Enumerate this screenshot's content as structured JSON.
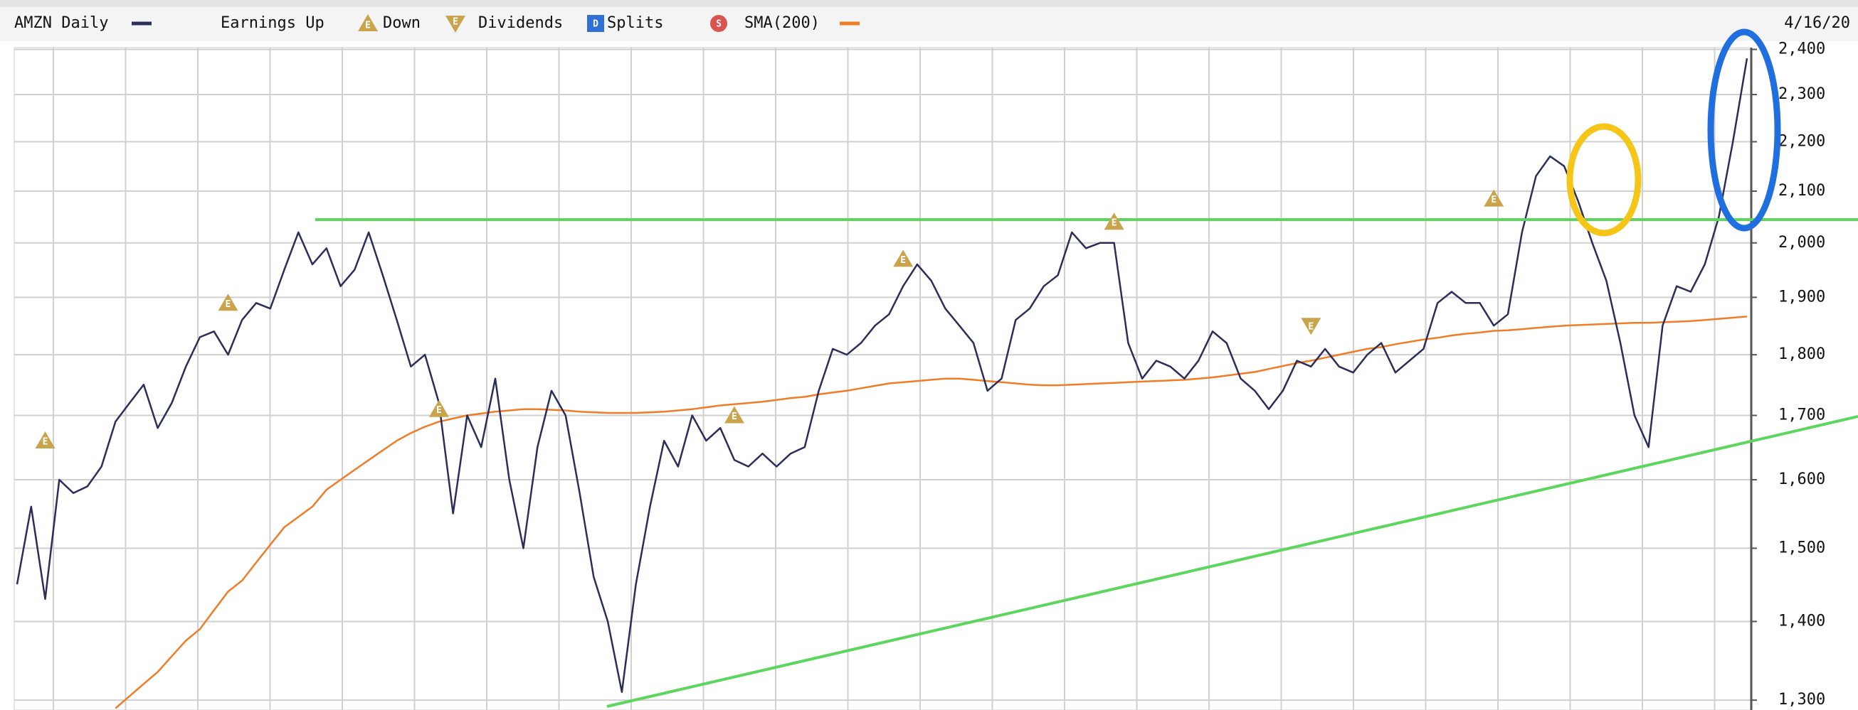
{
  "chart_data": {
    "type": "line",
    "date_label": "4/16/20",
    "legend": [
      {
        "label": "AMZN Daily",
        "kind": "line",
        "color": "#2b2d5a"
      },
      {
        "label": "Earnings Up",
        "kind": "up",
        "icon": "E",
        "color": "#c9a44a"
      },
      {
        "label": "Down",
        "kind": "down",
        "icon": "E",
        "color": "#c9a44a"
      },
      {
        "label": "Dividends",
        "kind": "square",
        "icon": "D",
        "color": "#2f6fd6"
      },
      {
        "label": "Splits",
        "kind": "circle",
        "icon": "S",
        "color": "#d9534f"
      },
      {
        "label": "SMA(200)",
        "kind": "line",
        "color": "#f07c28"
      }
    ],
    "log_scale": true,
    "grid": true,
    "ylim": [
      1288,
      2404
    ],
    "yticks": [
      {
        "value": 1300,
        "label": "1,300"
      },
      {
        "value": 1400,
        "label": "1,400"
      },
      {
        "value": 1500,
        "label": "1,500"
      },
      {
        "value": 1600,
        "label": "1,600"
      },
      {
        "value": 1700,
        "label": "1,700"
      },
      {
        "value": 1800,
        "label": "1,800"
      },
      {
        "value": 1900,
        "label": "1,900"
      },
      {
        "value": 2000,
        "label": "2,000"
      },
      {
        "value": 2100,
        "label": "2,100"
      },
      {
        "value": 2200,
        "label": "2,200"
      },
      {
        "value": 2300,
        "label": "2,300"
      },
      {
        "value": 2400,
        "label": "2,400"
      }
    ],
    "series": [
      {
        "name": "AMZN Daily",
        "color": "#2b2d5a",
        "values": [
          1450,
          1560,
          1430,
          1600,
          1580,
          1590,
          1620,
          1690,
          1720,
          1750,
          1680,
          1720,
          1780,
          1830,
          1840,
          1800,
          1860,
          1890,
          1880,
          1950,
          2020,
          1960,
          1990,
          1920,
          1950,
          2020,
          1940,
          1860,
          1780,
          1800,
          1720,
          1550,
          1700,
          1650,
          1760,
          1600,
          1500,
          1650,
          1740,
          1700,
          1580,
          1460,
          1400,
          1310,
          1450,
          1560,
          1660,
          1620,
          1700,
          1660,
          1680,
          1630,
          1620,
          1640,
          1620,
          1640,
          1650,
          1740,
          1810,
          1800,
          1820,
          1850,
          1870,
          1920,
          1960,
          1930,
          1880,
          1850,
          1820,
          1740,
          1760,
          1860,
          1880,
          1920,
          1940,
          2020,
          1990,
          2000,
          2000,
          1820,
          1760,
          1790,
          1780,
          1760,
          1790,
          1840,
          1820,
          1760,
          1740,
          1710,
          1740,
          1790,
          1780,
          1810,
          1780,
          1770,
          1800,
          1820,
          1770,
          1790,
          1810,
          1890,
          1910,
          1890,
          1890,
          1850,
          1870,
          2020,
          2130,
          2170,
          2150,
          2080,
          2000,
          1930,
          1820,
          1700,
          1650,
          1850,
          1920,
          1910,
          1960,
          2050,
          2200,
          2380
        ]
      },
      {
        "name": "SMA(200)",
        "color": "#f07c28",
        "values": [
          null,
          null,
          null,
          null,
          null,
          null,
          null,
          1290,
          1305,
          1320,
          1335,
          1355,
          1375,
          1390,
          1415,
          1440,
          1455,
          1480,
          1505,
          1530,
          1545,
          1560,
          1585,
          1600,
          1615,
          1630,
          1645,
          1660,
          1672,
          1682,
          1690,
          1695,
          1700,
          1703,
          1706,
          1708,
          1710,
          1710,
          1709,
          1708,
          1706,
          1705,
          1704,
          1704,
          1704,
          1705,
          1706,
          1708,
          1710,
          1713,
          1716,
          1718,
          1720,
          1722,
          1725,
          1728,
          1730,
          1734,
          1737,
          1740,
          1744,
          1748,
          1752,
          1754,
          1756,
          1758,
          1760,
          1760,
          1758,
          1756,
          1754,
          1752,
          1750,
          1749,
          1749,
          1750,
          1751,
          1752,
          1753,
          1754,
          1755,
          1756,
          1757,
          1758,
          1760,
          1762,
          1765,
          1768,
          1771,
          1776,
          1781,
          1786,
          1790,
          1795,
          1800,
          1805,
          1810,
          1813,
          1818,
          1822,
          1826,
          1829,
          1833,
          1836,
          1838,
          1841,
          1842,
          1844,
          1846,
          1848,
          1850,
          1851,
          1852,
          1853,
          1854,
          1855,
          1855,
          1856,
          1857,
          1858,
          1860,
          1862,
          1864,
          1866
        ]
      }
    ],
    "earnings_markers": [
      {
        "index": 2,
        "value": 1660,
        "direction": "up",
        "label": "E"
      },
      {
        "index": 15,
        "value": 1890,
        "direction": "up",
        "label": "E"
      },
      {
        "index": 30,
        "value": 1710,
        "direction": "up",
        "label": "E"
      },
      {
        "index": 51,
        "value": 1700,
        "direction": "up",
        "label": "E"
      },
      {
        "index": 63,
        "value": 1970,
        "direction": "up",
        "label": "E"
      },
      {
        "index": 78,
        "value": 2040,
        "direction": "up",
        "label": "E"
      },
      {
        "index": 92,
        "value": 1850,
        "direction": "down",
        "label": "E"
      },
      {
        "index": 105,
        "value": 2085,
        "direction": "up",
        "label": "E"
      }
    ]
  }
}
